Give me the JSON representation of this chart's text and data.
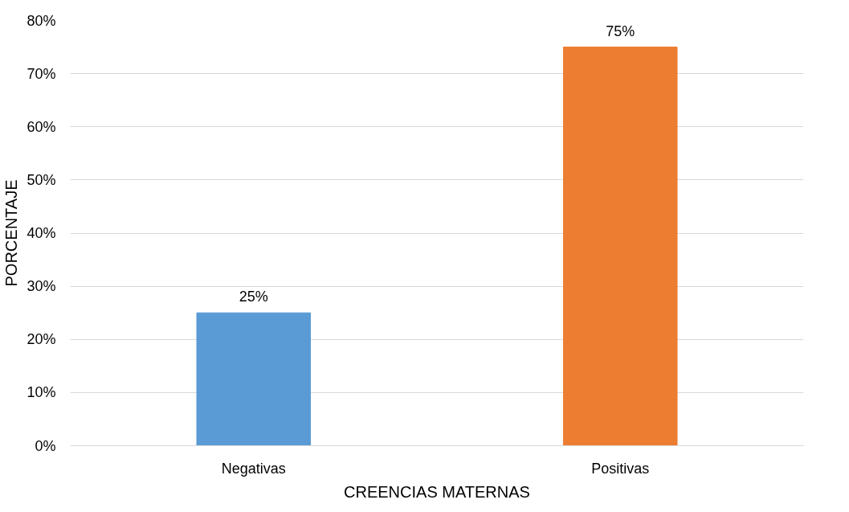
{
  "chart_data": {
    "type": "bar",
    "xlabel": "CREENCIAS MATERNAS",
    "ylabel": "PORCENTAJE",
    "categories": [
      "Negativas",
      "Positivas"
    ],
    "values": [
      25,
      75
    ],
    "colors": [
      "#5b9bd5",
      "#ed7d31"
    ],
    "value_labels": [
      "25%",
      "75%"
    ],
    "ylim": [
      0,
      80
    ],
    "yticks": [
      {
        "value": 0,
        "label": "0%"
      },
      {
        "value": 10,
        "label": "10%"
      },
      {
        "value": 20,
        "label": "20%"
      },
      {
        "value": 30,
        "label": "30%"
      },
      {
        "value": 40,
        "label": "40%"
      },
      {
        "value": 50,
        "label": "50%"
      },
      {
        "value": 60,
        "label": "60%"
      },
      {
        "value": 70,
        "label": "70%"
      },
      {
        "value": 80,
        "label": "80%"
      }
    ],
    "grid": "y"
  }
}
